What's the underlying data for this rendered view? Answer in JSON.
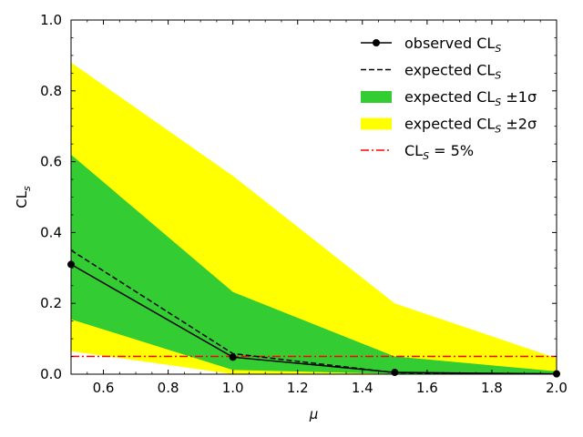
{
  "chart_data": {
    "type": "line",
    "xlabel": "μ",
    "ylabel": "CL",
    "ylabel_sub": "s",
    "xlim": [
      0.5,
      2.0
    ],
    "ylim": [
      0.0,
      1.0
    ],
    "x_ticks": [
      0.6,
      0.8,
      1.0,
      1.2,
      1.4,
      1.6,
      1.8,
      2.0
    ],
    "x_tick_labels": [
      "0.6",
      "0.8",
      "1.0",
      "1.2",
      "1.4",
      "1.6",
      "1.8",
      "2.0"
    ],
    "y_ticks": [
      0.0,
      0.2,
      0.4,
      0.6,
      0.8,
      1.0
    ],
    "y_tick_labels": [
      "0.0",
      "0.2",
      "0.4",
      "0.6",
      "0.8",
      "1.0"
    ],
    "grid": false,
    "legend_position": "top-right",
    "x": [
      0.5,
      1.0,
      1.5,
      2.0
    ],
    "series": [
      {
        "name": "observed CL",
        "name_sub": "S",
        "name_suffix": "",
        "kind": "line-marker",
        "color": "#000000",
        "values": [
          0.31,
          0.048,
          0.005,
          0.001
        ]
      },
      {
        "name": "expected CL",
        "name_sub": "S",
        "name_suffix": "",
        "kind": "dashed",
        "color": "#000000",
        "values": [
          0.35,
          0.058,
          0.004,
          0.0005
        ]
      },
      {
        "name": "expected CL",
        "name_sub": "S",
        "name_suffix": " ±1σ",
        "kind": "band",
        "color": "#33cc33",
        "lower": [
          0.155,
          0.012,
          0.001,
          0.0
        ],
        "upper": [
          0.62,
          0.232,
          0.05,
          0.008
        ]
      },
      {
        "name": "expected CL",
        "name_sub": "S",
        "name_suffix": " ±2σ",
        "kind": "band",
        "color": "#ffff00",
        "lower": [
          0.065,
          0.0,
          0.0,
          0.0
        ],
        "upper": [
          0.88,
          0.56,
          0.2,
          0.045
        ]
      },
      {
        "name": "CL",
        "name_sub": "S",
        "name_suffix": " = 5%",
        "kind": "hline",
        "color": "#ff0000",
        "y": 0.05
      }
    ]
  }
}
